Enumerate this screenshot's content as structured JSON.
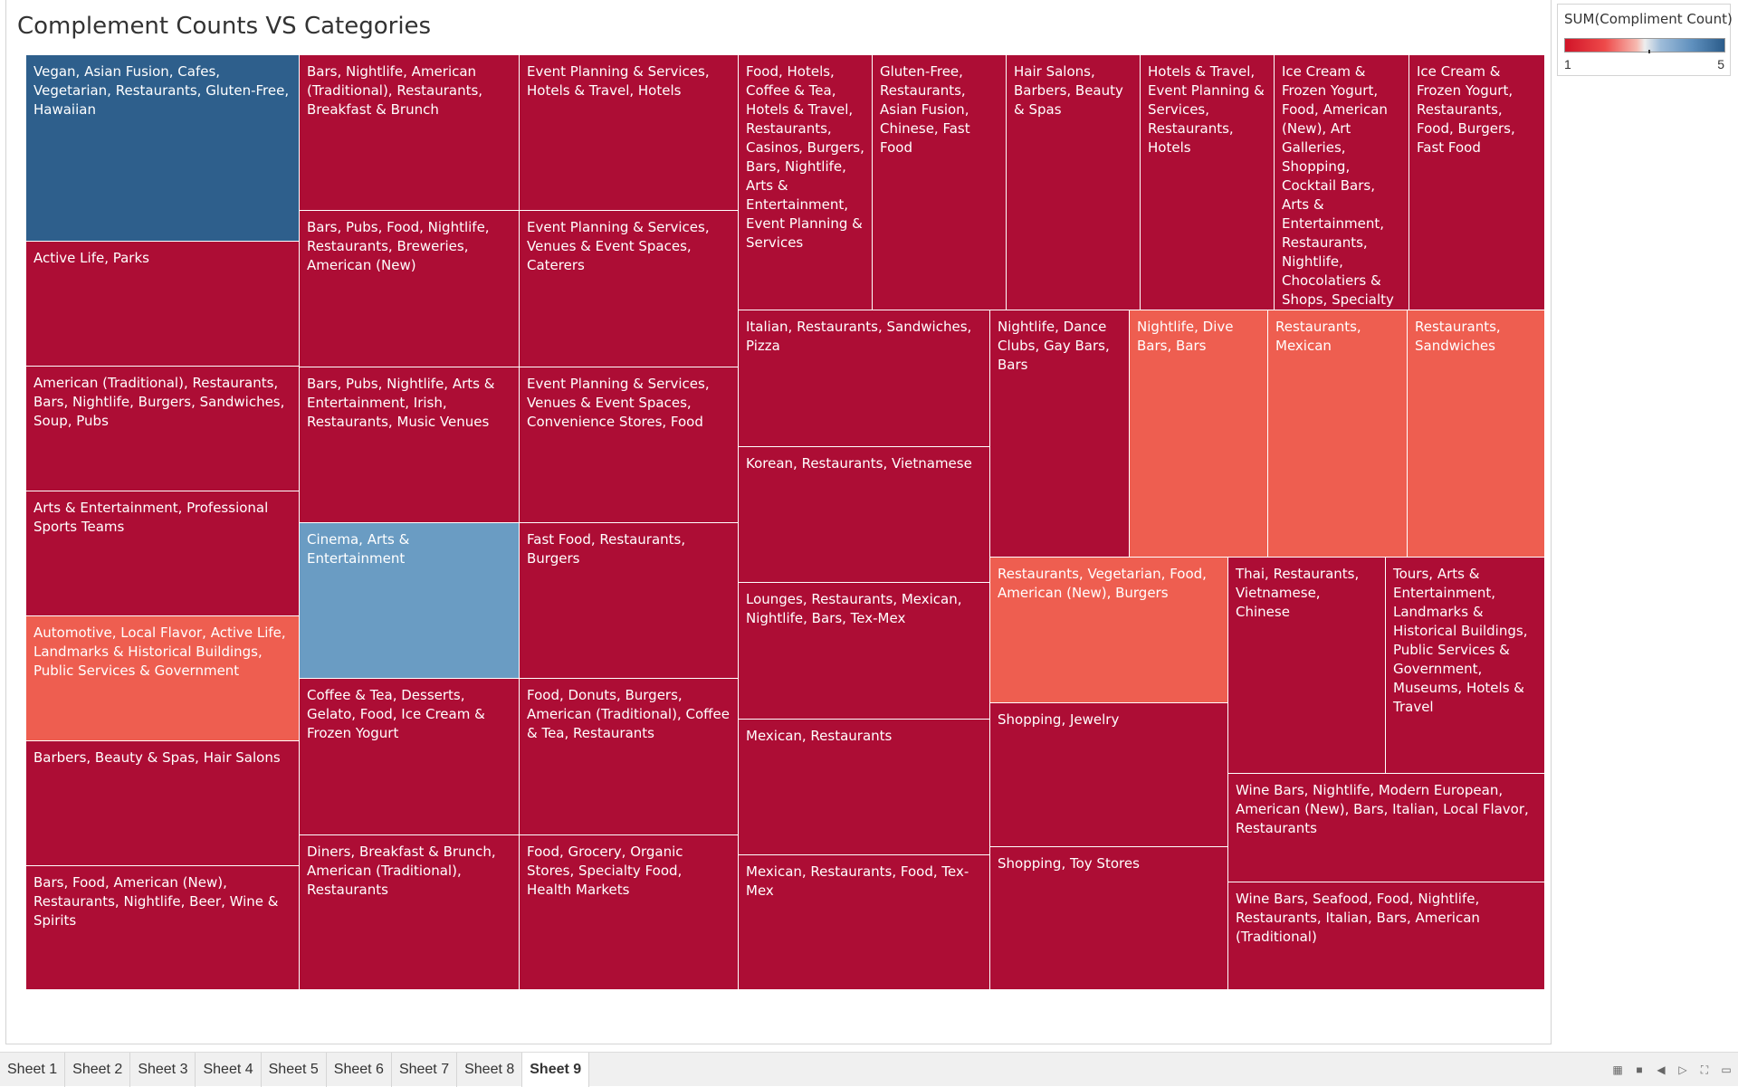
{
  "sheet_title": "Complement Counts VS Categories",
  "legend": {
    "title": "SUM(Compliment Count)",
    "min_label": "1",
    "max_label": "5",
    "colors": {
      "low": "#d11428",
      "mid": "#eeeeee",
      "high": "#2b5c8a"
    }
  },
  "colors": {
    "value_1": "#ad0d35",
    "value_2": "#ee5e50",
    "value_4": "#6a9cc3",
    "value_5": "#2e5f8c"
  },
  "chart_data": {
    "type": "treemap",
    "measure": "SUM(Compliment Count)",
    "color_range": [
      1,
      5
    ],
    "tiles": [
      {
        "label": "Vegan, Asian Fusion, Cafes, Vegetarian, Restaurants, Gluten-Free, Hawaiian",
        "value": 5
      },
      {
        "label": "Active Life, Parks",
        "value": 1
      },
      {
        "label": "American (Traditional), Restaurants, Bars, Nightlife, Burgers, Sandwiches, Soup, Pubs",
        "value": 1
      },
      {
        "label": "Arts & Entertainment, Professional Sports Teams",
        "value": 1
      },
      {
        "label": "Automotive, Local Flavor, Active Life, Landmarks & Historical Buildings, Public Services & Government",
        "value": 2
      },
      {
        "label": "Barbers, Beauty & Spas, Hair Salons",
        "value": 1
      },
      {
        "label": "Bars, Food, American (New), Restaurants, Nightlife, Beer, Wine & Spirits",
        "value": 1
      },
      {
        "label": "Bars, Nightlife, American (Traditional), Restaurants, Breakfast & Brunch",
        "value": 1
      },
      {
        "label": "Bars, Pubs, Food, Nightlife, Restaurants, Breweries, American (New)",
        "value": 1
      },
      {
        "label": "Bars, Pubs, Nightlife, Arts & Entertainment, Irish, Restaurants, Music Venues",
        "value": 1
      },
      {
        "label": "Cinema, Arts & Entertainment",
        "value": 4
      },
      {
        "label": "Coffee & Tea, Desserts, Gelato, Food, Ice Cream & Frozen Yogurt",
        "value": 1
      },
      {
        "label": "Diners, Breakfast & Brunch, American (Traditional), Restaurants",
        "value": 1
      },
      {
        "label": "Event Planning & Services, Hotels & Travel, Hotels",
        "value": 1
      },
      {
        "label": "Event Planning & Services, Venues & Event Spaces, Caterers",
        "value": 1
      },
      {
        "label": "Event Planning & Services, Venues & Event Spaces, Convenience Stores, Food",
        "value": 1
      },
      {
        "label": "Fast Food, Restaurants, Burgers",
        "value": 1
      },
      {
        "label": "Food, Donuts, Burgers, American (Traditional), Coffee & Tea, Restaurants",
        "value": 1
      },
      {
        "label": "Food, Grocery, Organic Stores, Specialty Food, Health Markets",
        "value": 1
      },
      {
        "label": "Food, Hotels, Coffee & Tea, Hotels & Travel, Restaurants, Casinos, Burgers, Bars, Nightlife, Arts & Entertainment, Event Planning & Services",
        "value": 1
      },
      {
        "label": "Gluten-Free, Restaurants, Asian Fusion, Chinese, Fast Food",
        "value": 1
      },
      {
        "label": "Hair Salons, Barbers, Beauty & Spas",
        "value": 1
      },
      {
        "label": "Hotels & Travel, Event Planning & Services, Restaurants, Hotels",
        "value": 1
      },
      {
        "label": "Ice Cream & Frozen Yogurt, Food, American (New), Art Galleries, Shopping, Cocktail Bars, Arts & Entertainment, Restaurants, Nightlife, Chocolatiers & Shops, Specialty",
        "value": 1
      },
      {
        "label": "Ice Cream & Frozen Yogurt, Restaurants, Food, Burgers, Fast Food",
        "value": 1
      },
      {
        "label": "Italian, Restaurants, Sandwiches, Pizza",
        "value": 1
      },
      {
        "label": "Korean, Restaurants, Vietnamese",
        "value": 1
      },
      {
        "label": "Lounges, Restaurants, Mexican, Nightlife, Bars, Tex-Mex",
        "value": 1
      },
      {
        "label": "Mexican, Restaurants",
        "value": 1
      },
      {
        "label": "Mexican, Restaurants, Food, Tex-Mex",
        "value": 1
      },
      {
        "label": "Nightlife, Dance Clubs, Gay Bars, Bars",
        "value": 1
      },
      {
        "label": "Nightlife, Dive Bars, Bars",
        "value": 2
      },
      {
        "label": "Restaurants, Mexican",
        "value": 2
      },
      {
        "label": "Restaurants, Sandwiches",
        "value": 2
      },
      {
        "label": "Restaurants, Vegetarian, Food, American (New), Burgers",
        "value": 2
      },
      {
        "label": "Shopping, Jewelry",
        "value": 1
      },
      {
        "label": "Shopping, Toy Stores",
        "value": 1
      },
      {
        "label": "Thai, Restaurants, Vietnamese, Chinese",
        "value": 1
      },
      {
        "label": "Tours, Arts & Entertainment, Landmarks & Historical Buildings, Public Services & Government, Museums, Hotels & Travel",
        "value": 1
      },
      {
        "label": "Wine Bars, Nightlife, Modern European, American (New), Bars, Italian, Local Flavor, Restaurants",
        "value": 1
      },
      {
        "label": "Wine Bars, Seafood, Food, Nightlife, Restaurants, Italian, Bars, American (Traditional)",
        "value": 1
      }
    ]
  },
  "tabs": [
    "Sheet 1",
    "Sheet 2",
    "Sheet 3",
    "Sheet 4",
    "Sheet 5",
    "Sheet 6",
    "Sheet 7",
    "Sheet 8",
    "Sheet 9"
  ],
  "active_tab": "Sheet 9",
  "nav_icons": [
    "grid-view-icon",
    "filmstrip-icon",
    "prev-sheet-icon",
    "next-sheet-icon",
    "fullscreen-icon",
    "presentation-icon"
  ]
}
